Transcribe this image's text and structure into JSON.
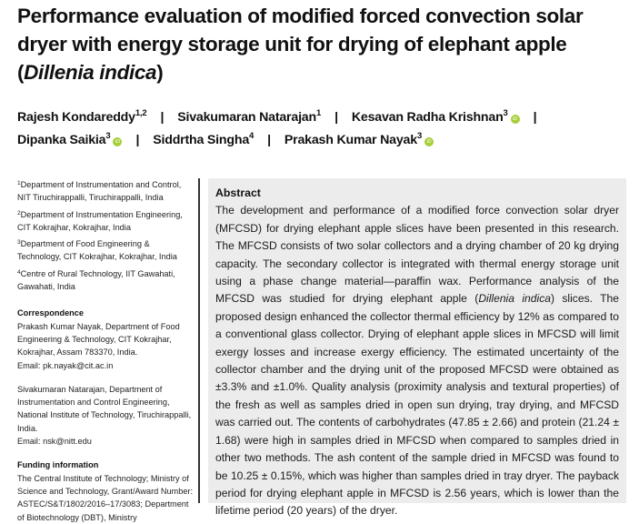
{
  "paper": {
    "title_part1": "Performance evaluation of modified forced convection solar dryer with energy storage unit for drying of elephant apple (",
    "title_species": "Dillenia indica",
    "title_part2": ")",
    "authors": [
      {
        "name": "Rajesh Kondareddy",
        "sup": "1,2",
        "orcid": false
      },
      {
        "name": "Sivakumaran Natarajan",
        "sup": "1",
        "orcid": false
      },
      {
        "name": "Kesavan Radha Krishnan",
        "sup": "3",
        "orcid": true
      },
      {
        "name": "Dipanka Saikia",
        "sup": "3",
        "orcid": true
      },
      {
        "name": "Siddrtha Singha",
        "sup": "4",
        "orcid": false
      },
      {
        "name": "Prakash Kumar Nayak",
        "sup": "3",
        "orcid": true
      }
    ],
    "separator": "|",
    "orcid_icon_label": "iD",
    "colors": {
      "orcid": "#a6ce39",
      "abstract_bg": "#ececec"
    }
  },
  "affiliations": [
    {
      "sup": "1",
      "text": "Department of Instrumentation and Control, NIT Tiruchirappalli, Tiruchirappalli, India"
    },
    {
      "sup": "2",
      "text": "Department of Instrumentation Engineering, CIT Kokrajhar, Kokrajhar, India"
    },
    {
      "sup": "3",
      "text": "Department of Food Engineering & Technology, CIT Kokrajhar, Kokrajhar, India"
    },
    {
      "sup": "4",
      "text": "Centre of Rural Technology, IIT Gawahati, Gawahati, India"
    }
  ],
  "correspondence": {
    "heading": "Correspondence",
    "entries": [
      {
        "text": "Prakash Kumar Nayak, Department of Food Engineering & Technology, CIT Kokrajhar, Kokrajhar, Assam 783370, India.",
        "email": "Email: pk.nayak@cit.ac.in"
      },
      {
        "text": "Sivakumaran Natarajan, Department of Instrumentation and Control Engineering, National Institute of Technology, Tiruchirappalli, India.",
        "email": "Email: nsk@nitt.edu"
      }
    ]
  },
  "funding": {
    "heading": "Funding information",
    "text": "The Central Institute of Technology; Ministry of Science and Technology, Grant/Award Number: ASTEC/S&T/1802/2016–17/3083; Department of Biotechnology (DBT), Ministry"
  },
  "abstract": {
    "heading": "Abstract",
    "text_part1": "The development and performance of a modified force convection solar dryer (MFCSD) for drying elephant apple slices have been presented in this research. The MFCSD consists of two solar collectors and a drying chamber of 20 kg drying capacity. The secondary collector is integrated with thermal energy storage unit using a phase change material—paraffin wax. Performance analysis of the MFCSD was studied for drying elephant apple (",
    "text_species": "Dillenia indica",
    "text_part2": ") slices. The proposed design enhanced the collector thermal efficiency by 12% as compared to a conventional glass collector. Drying of elephant apple slices in MFCSD will limit exergy losses and increase exergy efficiency. The estimated uncertainty of the collector chamber and the drying unit of the proposed MFCSD were obtained as ±3.3% and ±1.0%. Quality analysis (proximity analysis and textural properties) of the fresh as well as samples dried in open sun drying, tray drying, and MFCSD was carried out. The contents of carbohydrates (47.85 ± 2.66) and protein (21.24 ± 1.68) were high in samples dried in MFCSD when compared to samples dried in other two methods. The ash content of the sample dried in MFCSD was found to be 10.25 ± 0.15%, which was higher than samples dried in tray dryer. The payback period for drying elephant apple in MFCSD is 2.56 years, which is lower than the lifetime period (20 years) of the dryer."
  }
}
